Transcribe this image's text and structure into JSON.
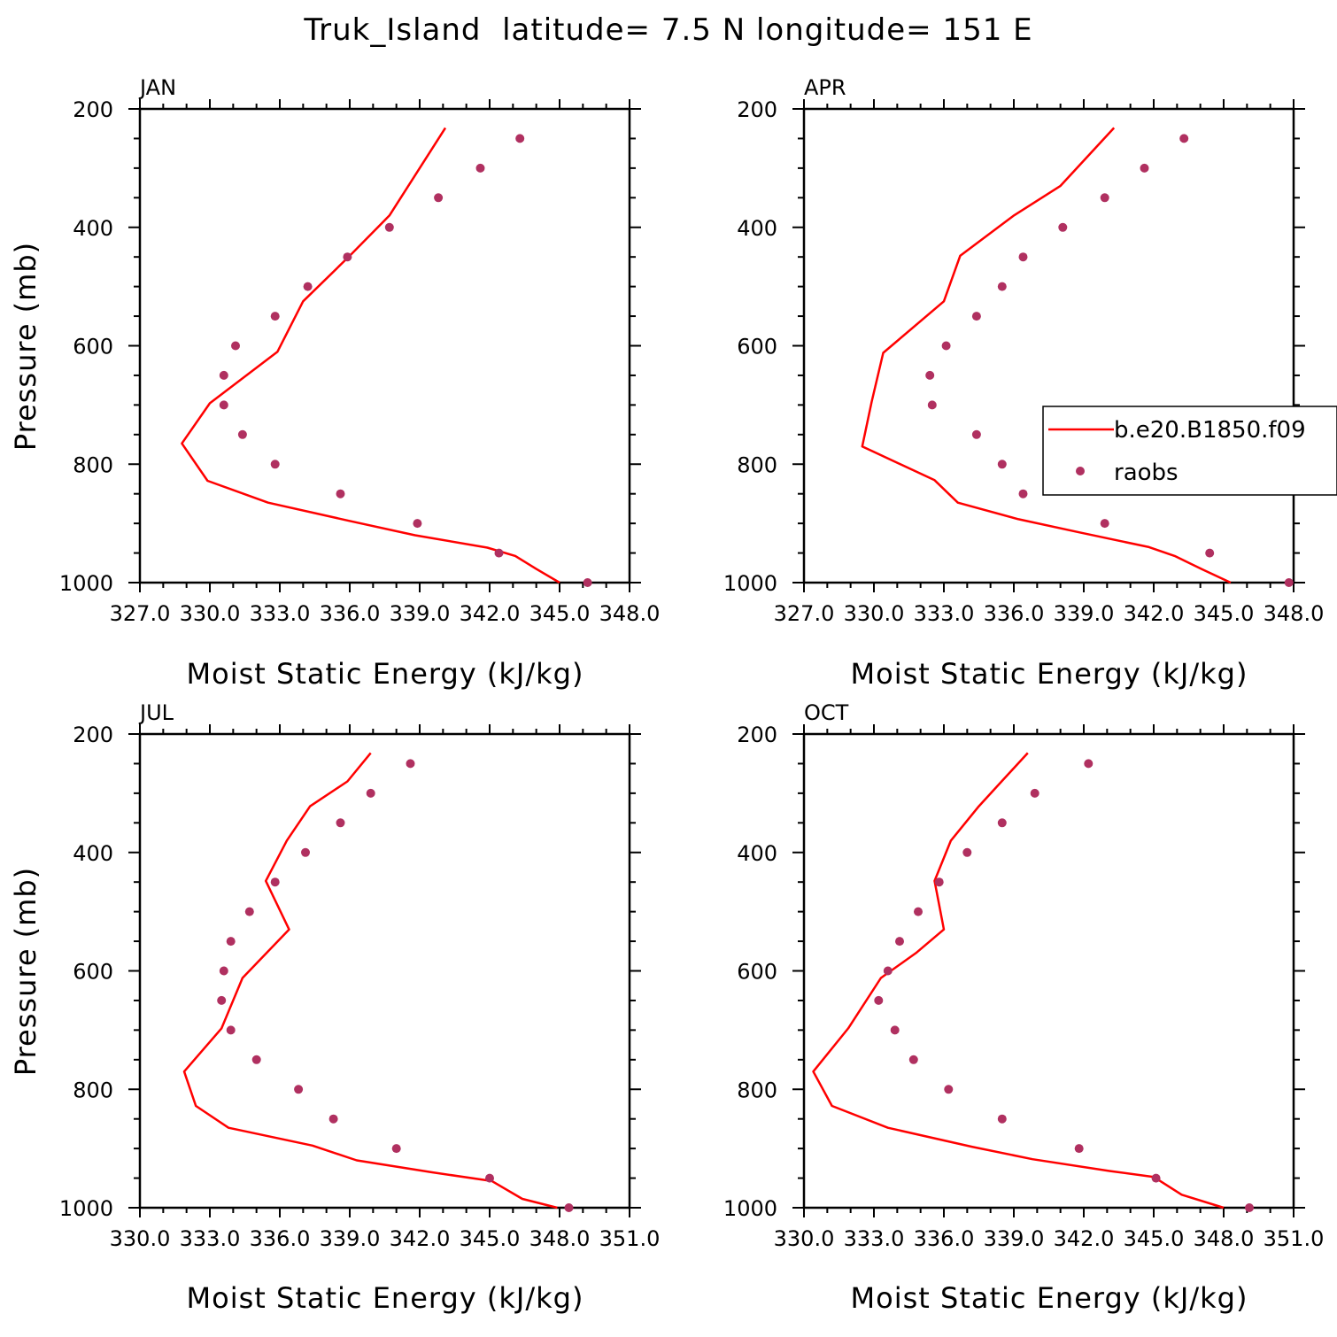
{
  "title": "Truk_Island  latitude= 7.5 N longitude= 151 E",
  "colors": {
    "model": "#ff0000",
    "obs": "#b03060"
  },
  "legend": {
    "placement": "inside APR panel, right",
    "model": "b.e20.B1850.f09",
    "obs": "raobs"
  },
  "chart_data": [
    {
      "type": "line",
      "panel": "JAN",
      "xlabel": "Moist Static Energy (kJ/kg)",
      "ylabel": "Pressure (mb)",
      "xlim": [
        327,
        348
      ],
      "ylim": [
        1000,
        200
      ],
      "xticks": [
        "327.0",
        "330.0",
        "333.0",
        "336.0",
        "339.0",
        "342.0",
        "345.0",
        "348.0"
      ],
      "yticks": [
        200,
        400,
        600,
        800,
        1000
      ],
      "series": [
        {
          "name": "b.e20.B1850.f09",
          "kind": "line",
          "x": [
            345.0,
            344.0,
            343.1,
            341.9,
            338.8,
            335.9,
            332.5,
            329.9,
            328.8,
            330.0,
            332.9,
            334.0,
            336.0,
            337.7,
            340.1
          ],
          "y": [
            1000,
            977,
            955,
            941,
            920,
            895,
            865,
            828,
            765,
            697,
            610,
            525,
            448,
            380,
            232
          ]
        },
        {
          "name": "raobs",
          "kind": "scatter",
          "x": [
            346.2,
            342.4,
            338.9,
            335.6,
            332.8,
            331.4,
            330.6,
            330.6,
            331.1,
            332.8,
            334.2,
            335.9,
            337.7,
            339.8,
            341.6,
            343.3
          ],
          "y": [
            1000,
            950,
            900,
            850,
            800,
            750,
            700,
            650,
            600,
            550,
            500,
            450,
            400,
            350,
            300,
            250
          ]
        }
      ]
    },
    {
      "type": "line",
      "panel": "APR",
      "xlabel": "Moist Static Energy (kJ/kg)",
      "ylabel": "Pressure (mb)",
      "xlim": [
        327,
        348
      ],
      "ylim": [
        1000,
        200
      ],
      "xticks": [
        "327.0",
        "330.0",
        "333.0",
        "336.0",
        "339.0",
        "342.0",
        "345.0",
        "348.0"
      ],
      "yticks": [
        200,
        400,
        600,
        800,
        1000
      ],
      "series": [
        {
          "name": "b.e20.B1850.f09",
          "kind": "line",
          "x": [
            345.3,
            344.1,
            342.9,
            341.8,
            338.8,
            336.2,
            333.6,
            332.6,
            329.5,
            329.9,
            330.4,
            333.0,
            333.7,
            336.0,
            338.0,
            340.3
          ],
          "y": [
            1000,
            978,
            955,
            940,
            915,
            893,
            865,
            827,
            770,
            695,
            612,
            525,
            448,
            380,
            330,
            232
          ]
        },
        {
          "name": "raobs",
          "kind": "scatter",
          "x": [
            347.8,
            344.4,
            339.9,
            336.4,
            335.5,
            334.4,
            332.5,
            332.4,
            333.1,
            334.4,
            335.5,
            336.4,
            338.1,
            339.9,
            341.6,
            343.3
          ],
          "y": [
            1000,
            950,
            900,
            850,
            800,
            750,
            700,
            650,
            600,
            550,
            500,
            450,
            400,
            350,
            300,
            250
          ]
        }
      ]
    },
    {
      "type": "line",
      "panel": "JUL",
      "xlabel": "Moist Static Energy (kJ/kg)",
      "ylabel": "Pressure (mb)",
      "xlim": [
        330,
        351
      ],
      "ylim": [
        1000,
        200
      ],
      "xticks": [
        "330.0",
        "333.0",
        "336.0",
        "339.0",
        "342.0",
        "345.0",
        "348.0",
        "351.0"
      ],
      "yticks": [
        200,
        400,
        600,
        800,
        1000
      ],
      "series": [
        {
          "name": "b.e20.B1850.f09",
          "kind": "line",
          "x": [
            347.9,
            346.4,
            345.1,
            342.5,
            339.3,
            337.4,
            333.8,
            332.4,
            331.9,
            333.5,
            334.4,
            336.4,
            335.4,
            336.3,
            337.3,
            338.9,
            339.9
          ],
          "y": [
            1000,
            985,
            955,
            940,
            920,
            895,
            865,
            828,
            770,
            697,
            612,
            530,
            448,
            380,
            322,
            280,
            232
          ]
        },
        {
          "name": "raobs",
          "kind": "scatter",
          "x": [
            348.4,
            345.0,
            341.0,
            338.3,
            336.8,
            335.0,
            333.9,
            333.5,
            333.6,
            333.9,
            334.7,
            335.8,
            337.1,
            338.6,
            339.9,
            341.6
          ],
          "y": [
            1000,
            950,
            900,
            850,
            800,
            750,
            700,
            650,
            600,
            550,
            500,
            450,
            400,
            350,
            300,
            250
          ]
        }
      ]
    },
    {
      "type": "line",
      "panel": "OCT",
      "xlabel": "Moist Static Energy (kJ/kg)",
      "ylabel": "Pressure (mb)",
      "xlim": [
        330,
        351
      ],
      "ylim": [
        1000,
        200
      ],
      "xticks": [
        "330.0",
        "333.0",
        "336.0",
        "339.0",
        "342.0",
        "345.0",
        "348.0",
        "351.0"
      ],
      "yticks": [
        200,
        400,
        600,
        800,
        1000
      ],
      "series": [
        {
          "name": "b.e20.B1850.f09",
          "kind": "line",
          "x": [
            348.0,
            346.2,
            345.0,
            343.1,
            339.8,
            337.2,
            333.6,
            331.2,
            330.4,
            331.9,
            333.3,
            334.8,
            336.0,
            335.6,
            336.3,
            337.5,
            338.2,
            339.6
          ],
          "y": [
            1000,
            978,
            948,
            938,
            918,
            897,
            865,
            828,
            770,
            697,
            612,
            570,
            530,
            448,
            380,
            322,
            292,
            232
          ]
        },
        {
          "name": "raobs",
          "kind": "scatter",
          "x": [
            349.1,
            345.1,
            341.8,
            338.5,
            336.2,
            334.7,
            333.9,
            333.2,
            333.6,
            334.1,
            334.9,
            335.8,
            337.0,
            338.5,
            339.9,
            342.2
          ],
          "y": [
            1000,
            950,
            900,
            850,
            800,
            750,
            700,
            650,
            600,
            550,
            500,
            450,
            400,
            350,
            300,
            250
          ]
        }
      ]
    }
  ]
}
